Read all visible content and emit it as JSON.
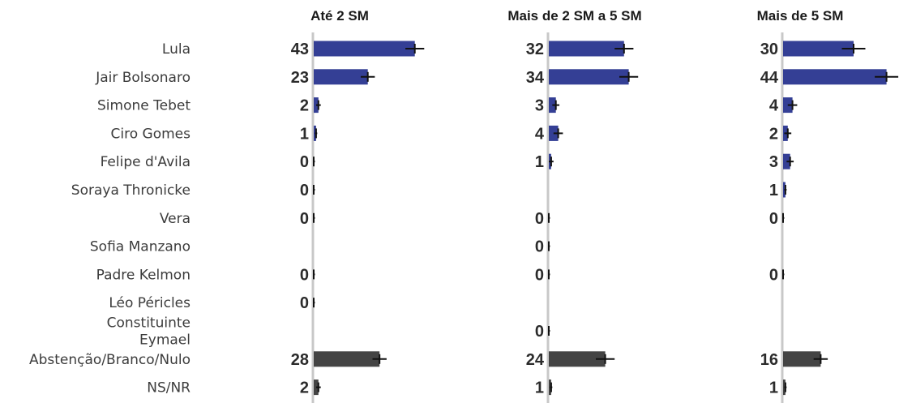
{
  "chart_data": {
    "type": "bar",
    "orientation": "horizontal",
    "facets": [
      "Até 2 SM",
      "Mais de 2 SM a 5 SM",
      "Mais de 5 SM"
    ],
    "categories": [
      "Lula",
      "Jair Bolsonaro",
      "Simone Tebet",
      "Ciro Gomes",
      "Felipe d'Avila",
      "Soraya Thronicke",
      "Vera",
      "Sofia Manzano",
      "Padre Kelmon",
      "Léo Péricles",
      "Constituinte Eymael",
      "Abstenção/Branco/Nulo",
      "NS/NR"
    ],
    "category_lines": [
      [
        "Lula"
      ],
      [
        "Jair Bolsonaro"
      ],
      [
        "Simone Tebet"
      ],
      [
        "Ciro Gomes"
      ],
      [
        "Felipe d'Avila"
      ],
      [
        "Soraya Thronicke"
      ],
      [
        "Vera"
      ],
      [
        "Sofia Manzano"
      ],
      [
        "Padre Kelmon"
      ],
      [
        "Léo Péricles"
      ],
      [
        "Constituinte",
        "Eymael"
      ],
      [
        "Abstenção/Branco/Nulo"
      ],
      [
        "NS/NR"
      ]
    ],
    "series": [
      {
        "facet": "Até 2 SM",
        "values": [
          43,
          23,
          2,
          1,
          0,
          0,
          0,
          null,
          0,
          0,
          null,
          28,
          2
        ],
        "error": [
          4,
          3,
          1,
          0.5,
          0.5,
          0.5,
          0.5,
          null,
          0.5,
          0.5,
          null,
          3,
          1
        ]
      },
      {
        "facet": "Mais de 2 SM a 5 SM",
        "values": [
          32,
          34,
          3,
          4,
          1,
          null,
          0,
          0,
          0,
          null,
          0,
          24,
          1
        ],
        "error": [
          4,
          4,
          1.5,
          2,
          1,
          null,
          0.5,
          0.5,
          0.5,
          null,
          0.5,
          4,
          0.5
        ]
      },
      {
        "facet": "Mais de 5 SM",
        "values": [
          30,
          44,
          4,
          2,
          3,
          1,
          0,
          null,
          0,
          null,
          null,
          16,
          1
        ]
      }
    ],
    "error_bars_mdc": [
      [
        4,
        3,
        1,
        0.5,
        0.5,
        0.5,
        0.5,
        null,
        0.5,
        0.5,
        null,
        3,
        1
      ],
      [
        4,
        4,
        1.5,
        2,
        1,
        null,
        0.5,
        0.5,
        0.5,
        null,
        0.5,
        4,
        0.5
      ],
      [
        5,
        5,
        2,
        1.5,
        1.5,
        0.5,
        0.5,
        null,
        0.5,
        null,
        null,
        3,
        0.5
      ]
    ],
    "colors": {
      "candidate": "#343f95",
      "other": "#444444",
      "axis": "#c8c8c8",
      "error": "#111111"
    },
    "other_categories": [
      "Abstenção/Branco/Nulo",
      "NS/NR"
    ],
    "xlim": [
      0,
      48
    ]
  }
}
